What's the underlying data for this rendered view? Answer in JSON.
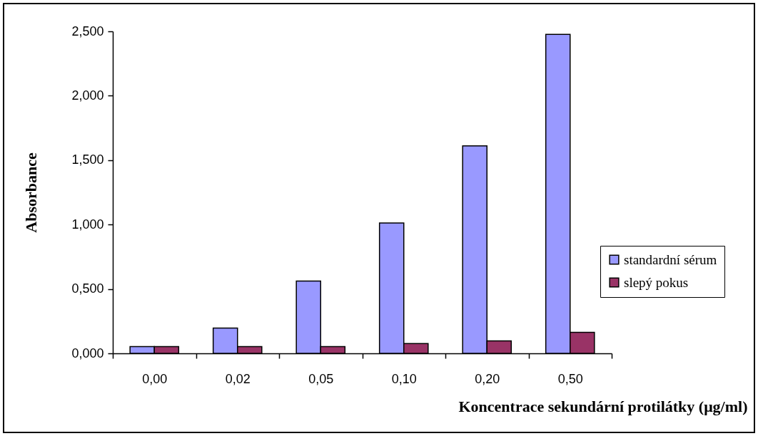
{
  "chart_data": {
    "type": "bar",
    "xlabel": "Koncentrace sekundární protilátky (μg/ml)",
    "ylabel": "Absorbance",
    "categories": [
      "0,00",
      "0,02",
      "0,05",
      "0,10",
      "0,20",
      "0,50"
    ],
    "series": [
      {
        "name": "standardní sérum",
        "color": "#9999ff",
        "values": [
          0.053,
          0.197,
          0.561,
          1.012,
          1.611,
          2.477
        ]
      },
      {
        "name": "slepý pokus",
        "color": "#993366",
        "values": [
          0.053,
          0.053,
          0.053,
          0.076,
          0.097,
          0.163
        ]
      }
    ],
    "ylim": [
      0,
      2.5
    ],
    "yticks": [
      {
        "value": 0,
        "label": "0,000"
      },
      {
        "value": 0.5,
        "label": "0,500"
      },
      {
        "value": 1,
        "label": "1,000"
      },
      {
        "value": 1.5,
        "label": "1,500"
      },
      {
        "value": 2,
        "label": "2,000"
      },
      {
        "value": 2.5,
        "label": "2,500"
      }
    ],
    "grid": false,
    "legend": "right"
  }
}
